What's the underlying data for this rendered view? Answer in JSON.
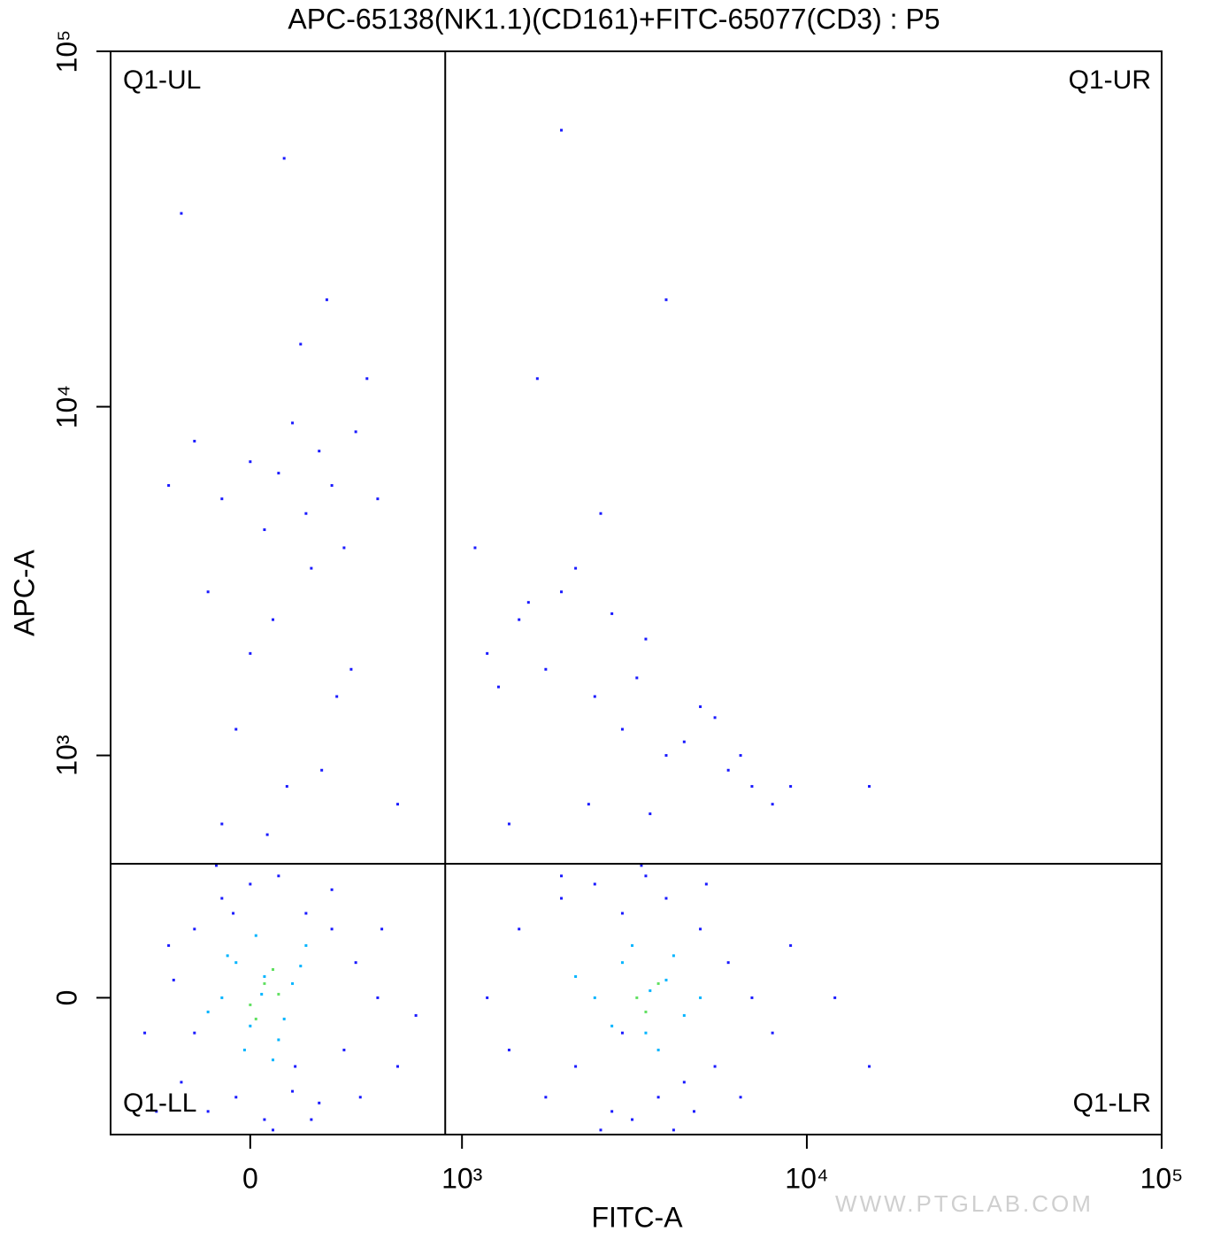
{
  "chart_data": {
    "type": "scatter",
    "title": "APC-65138(NK1.1)(CD161)+FITC-65077(CD3) : P5",
    "x_label": "FITC-A",
    "y_label": "APC-A",
    "scale": "biexponential",
    "xlim": [
      -560,
      100000
    ],
    "ylim": [
      -438,
      100000
    ],
    "xticks": [
      0,
      {
        "value": 1000,
        "label": "10³"
      },
      {
        "value": 10000,
        "label": "10⁴"
      },
      {
        "value": 100000,
        "label": "10⁵"
      }
    ],
    "yticks": [
      0,
      {
        "value": 1000,
        "label": "10³"
      },
      {
        "value": 10000,
        "label": "10⁴"
      },
      {
        "value": 100000,
        "label": "10⁵"
      }
    ],
    "gate": {
      "x": 882,
      "y": 427
    },
    "quadrant_labels": {
      "UL": "Q1-UL",
      "UR": "Q1-UR",
      "LL": "Q1-LL",
      "LR": "Q1-LR"
    },
    "watermark": "WWW.PTGLAB.COM",
    "series": [
      {
        "color": "#1a1aff",
        "x": [
          -400,
          -300,
          -250,
          -200,
          -150,
          -100,
          -50,
          0,
          50,
          100,
          150,
          200,
          250,
          300,
          350,
          400,
          500,
          600,
          -350,
          -120,
          80,
          220,
          -280,
          420,
          -60,
          160,
          300,
          -200,
          520,
          700
        ],
        "values": [
          -100,
          150,
          -250,
          200,
          -350,
          300,
          -300,
          350,
          -380,
          380,
          -280,
          250,
          -320,
          200,
          -150,
          100,
          0,
          -200,
          -350,
          420,
          -420,
          -380,
          50,
          -300,
          250,
          -200,
          330,
          -100,
          200,
          -50
        ]
      },
      {
        "color": "#00b4ff",
        "x": [
          -100,
          -50,
          0,
          50,
          100,
          150,
          200,
          -150,
          80,
          20,
          120,
          -80,
          180,
          40,
          -20
        ],
        "values": [
          0,
          100,
          -80,
          60,
          -120,
          40,
          150,
          -40,
          -180,
          180,
          -60,
          120,
          90,
          10,
          -150
        ]
      },
      {
        "color": "#60e060",
        "x": [
          0,
          50,
          100,
          20,
          80
        ],
        "values": [
          -20,
          40,
          10,
          -60,
          80
        ]
      },
      {
        "color": "#1a1aff",
        "x": [
          1200,
          1500,
          1800,
          2000,
          2200,
          2500,
          2800,
          3000,
          3200,
          3500,
          3800,
          4000,
          4500,
          5000,
          5500,
          6000,
          7000,
          8000,
          1400,
          2600,
          3400,
          4200,
          5200,
          6500,
          9000,
          12000,
          2000,
          3000,
          4800,
          15000
        ],
        "values": [
          0,
          200,
          -300,
          300,
          -200,
          350,
          -350,
          250,
          -380,
          380,
          -300,
          300,
          -250,
          200,
          -200,
          100,
          0,
          -100,
          -150,
          -420,
          420,
          -420,
          350,
          -300,
          150,
          0,
          380,
          -100,
          -350,
          -200
        ]
      },
      {
        "color": "#00b4ff",
        "x": [
          2500,
          3000,
          3500,
          4000,
          4500,
          3200,
          3800,
          2800,
          4200,
          3600,
          5000,
          2200
        ],
        "values": [
          0,
          100,
          -100,
          50,
          -50,
          150,
          -150,
          -80,
          120,
          20,
          0,
          60
        ]
      },
      {
        "color": "#60e060",
        "x": [
          3300,
          3800,
          3500
        ],
        "values": [
          0,
          40,
          -40
        ]
      },
      {
        "color": "#1a1aff",
        "x": [
          -300,
          -200,
          -100,
          0,
          50,
          100,
          150,
          200,
          250,
          300,
          350,
          400,
          500,
          -150,
          80,
          180,
          280,
          -250,
          120,
          220,
          0,
          320,
          450,
          -50,
          600,
          130,
          260,
          -100,
          60,
          380
        ],
        "values": [
          6000,
          8000,
          5500,
          7000,
          4500,
          6500,
          9000,
          5000,
          7500,
          6000,
          4000,
          8500,
          5500,
          3000,
          2500,
          15000,
          20000,
          35000,
          50000,
          3500,
          2000,
          1500,
          12000,
          1200,
          700,
          800,
          900,
          600,
          550,
          1800
        ]
      },
      {
        "color": "#1a1aff",
        "x": [
          1200,
          1500,
          1800,
          2000,
          2500,
          3000,
          3500,
          4000,
          5000,
          6000,
          7000,
          8000,
          1300,
          1600,
          2200,
          2800,
          3300,
          4500,
          5500,
          6500,
          1400,
          2400,
          3600,
          1100,
          1700,
          2600,
          9000,
          15000,
          4000,
          2000
        ],
        "values": [
          2000,
          2500,
          1800,
          3000,
          1500,
          1200,
          2200,
          1000,
          1400,
          900,
          800,
          700,
          1600,
          2800,
          3500,
          2600,
          1700,
          1100,
          1300,
          1000,
          600,
          700,
          650,
          4000,
          12000,
          5000,
          800,
          800,
          20000,
          60000
        ]
      }
    ]
  }
}
